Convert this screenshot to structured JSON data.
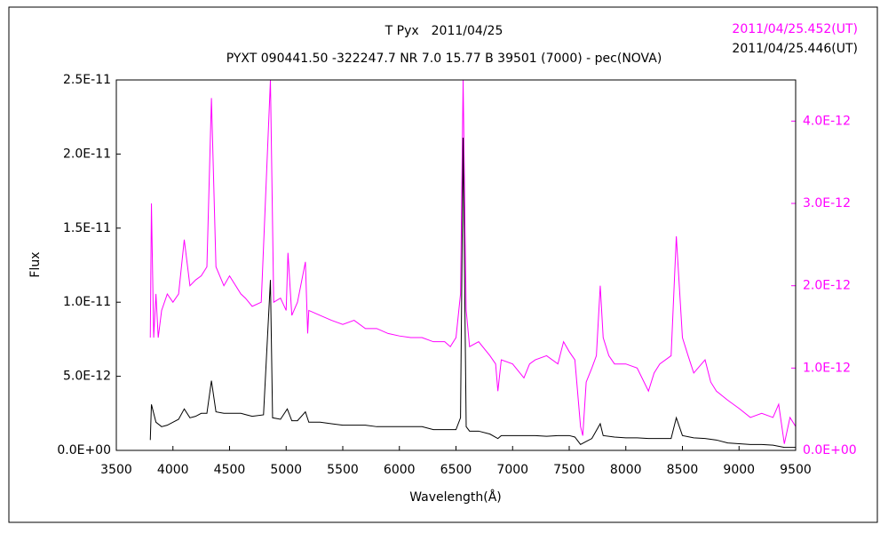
{
  "chart_data": {
    "type": "line",
    "title": "T Pyx　2011/04/25",
    "subtitle": "PYXT 090441.50 -322247.7 NR 7.0 15.77 B 39501 (7000) - pec(NOVA)",
    "xlabel": "Wavelength(Å)",
    "ylabel": "Flux",
    "xlim": [
      3500,
      9500
    ],
    "xticks": [
      3500,
      4000,
      4500,
      5000,
      5500,
      6000,
      6500,
      7000,
      7500,
      8000,
      8500,
      9000,
      9500
    ],
    "ylim": [
      0,
      2.5e-11
    ],
    "yticks": [
      {
        "value": 0,
        "label": "0.0E+00"
      },
      {
        "value": 5e-12,
        "label": "5.0E-12"
      },
      {
        "value": 1e-11,
        "label": "1.0E-11"
      },
      {
        "value": 1.5e-11,
        "label": "1.5E-11"
      },
      {
        "value": 2e-11,
        "label": "2.0E-11"
      },
      {
        "value": 2.5e-11,
        "label": "2.5E-11"
      }
    ],
    "y2lim": [
      0,
      4.5e-12
    ],
    "y2ticks": [
      {
        "value": 0,
        "label": "0.0E+00"
      },
      {
        "value": 1e-12,
        "label": "1.0E-12"
      },
      {
        "value": 2e-12,
        "label": "2.0E-12"
      },
      {
        "value": 3e-12,
        "label": "3.0E-12"
      },
      {
        "value": 4e-12,
        "label": "4.0E-12"
      }
    ],
    "series": [
      {
        "name": "2011/04/25.452(UT)",
        "color": "#ff00ff",
        "axis": "y2",
        "x": [
          3800,
          3810,
          3830,
          3850,
          3870,
          3900,
          3950,
          4000,
          4050,
          4100,
          4150,
          4200,
          4250,
          4300,
          4340,
          4380,
          4450,
          4500,
          4600,
          4640,
          4700,
          4780,
          4861,
          4890,
          4950,
          5000,
          5016,
          5050,
          5100,
          5170,
          5190,
          5200,
          5300,
          5400,
          5500,
          5600,
          5700,
          5800,
          5900,
          6000,
          6100,
          6200,
          6300,
          6400,
          6450,
          6500,
          6540,
          6563,
          6590,
          6620,
          6700,
          6800,
          6850,
          6870,
          6900,
          7000,
          7100,
          7150,
          7200,
          7300,
          7400,
          7450,
          7500,
          7550,
          7600,
          7620,
          7650,
          7700,
          7740,
          7774,
          7800,
          7850,
          7900,
          8000,
          8100,
          8200,
          8250,
          8300,
          8400,
          8446,
          8500,
          8550,
          8600,
          8700,
          8750,
          8800,
          8900,
          9000,
          9100,
          9200,
          9300,
          9350,
          9400,
          9450,
          9500
        ],
        "values": [
          1.37e-12,
          3e-12,
          1.37e-12,
          1.9e-12,
          1.37e-12,
          1.7e-12,
          1.9e-12,
          1.8e-12,
          1.9e-12,
          2.56e-12,
          2e-12,
          2.07e-12,
          2.12e-12,
          2.23e-12,
          4.28e-12,
          2.23e-12,
          2e-12,
          2.12e-12,
          1.9e-12,
          1.85e-12,
          1.75e-12,
          1.8e-12,
          4.5e-12,
          1.8e-12,
          1.85e-12,
          1.7e-12,
          2.4e-12,
          1.64e-12,
          1.8e-12,
          2.29e-12,
          1.42e-12,
          1.7e-12,
          1.64e-12,
          1.58e-12,
          1.53e-12,
          1.58e-12,
          1.48e-12,
          1.48e-12,
          1.42e-12,
          1.39e-12,
          1.37e-12,
          1.37e-12,
          1.32e-12,
          1.32e-12,
          1.26e-12,
          1.37e-12,
          1.9e-12,
          4.5e-12,
          1.7e-12,
          1.26e-12,
          1.32e-12,
          1.15e-12,
          1.05e-12,
          7.2e-13,
          1.1e-12,
          1.05e-12,
          8.8e-13,
          1.05e-12,
          1.1e-12,
          1.15e-12,
          1.05e-12,
          1.32e-12,
          1.2e-12,
          1.1e-12,
          2.9e-13,
          1.8e-13,
          8.3e-13,
          1e-12,
          1.15e-12,
          2e-12,
          1.37e-12,
          1.15e-12,
          1.05e-12,
          1.05e-12,
          1e-12,
          7.2e-13,
          9.4e-13,
          1.05e-12,
          1.15e-12,
          2.6e-12,
          1.37e-12,
          1.15e-12,
          9.4e-13,
          1.1e-12,
          8.3e-13,
          7.2e-13,
          6.1e-13,
          5.1e-13,
          4e-13,
          4.5e-13,
          4e-13,
          5.6e-13,
          8e-14,
          4e-13,
          2.9e-13
        ]
      },
      {
        "name": "2011/04/25.446(UT)",
        "color": "#000000",
        "x": [
          3800,
          3810,
          3850,
          3900,
          3950,
          4000,
          4050,
          4100,
          4150,
          4200,
          4250,
          4300,
          4340,
          4380,
          4450,
          4500,
          4600,
          4650,
          4700,
          4800,
          4861,
          4880,
          4950,
          5010,
          5050,
          5100,
          5170,
          5200,
          5300,
          5400,
          5500,
          5600,
          5700,
          5800,
          5900,
          6000,
          6100,
          6200,
          6300,
          6400,
          6500,
          6540,
          6563,
          6590,
          6620,
          6700,
          6800,
          6870,
          6900,
          7000,
          7100,
          7200,
          7300,
          7400,
          7500,
          7550,
          7600,
          7650,
          7700,
          7774,
          7800,
          7900,
          8000,
          8100,
          8200,
          8300,
          8400,
          8446,
          8500,
          8600,
          8700,
          8800,
          8900,
          9000,
          9100,
          9200,
          9300,
          9400,
          9500
        ],
        "values": [
          7e-13,
          3.1e-12,
          1.9e-12,
          1.6e-12,
          1.7e-12,
          1.9e-12,
          2.1e-12,
          2.8e-12,
          2.2e-12,
          2.3e-12,
          2.5e-12,
          2.5e-12,
          4.7e-12,
          2.6e-12,
          2.5e-12,
          2.5e-12,
          2.5e-12,
          2.4e-12,
          2.3e-12,
          2.4e-12,
          1.15e-11,
          2.2e-12,
          2.1e-12,
          2.8e-12,
          2e-12,
          2e-12,
          2.6e-12,
          1.9e-12,
          1.9e-12,
          1.8e-12,
          1.7e-12,
          1.7e-12,
          1.7e-12,
          1.6e-12,
          1.6e-12,
          1.6e-12,
          1.6e-12,
          1.6e-12,
          1.4e-12,
          1.4e-12,
          1.4e-12,
          2.2e-12,
          2.11e-11,
          1.6e-12,
          1.3e-12,
          1.3e-12,
          1.1e-12,
          8e-13,
          1e-12,
          1e-12,
          1e-12,
          1e-12,
          9.5e-13,
          1e-12,
          1e-12,
          9e-13,
          4e-13,
          6e-13,
          8e-13,
          1.8e-12,
          1e-12,
          9e-13,
          8.5e-13,
          8.5e-13,
          8e-13,
          8e-13,
          8e-13,
          2.2e-12,
          1e-12,
          8.5e-13,
          8e-13,
          7e-13,
          5e-13,
          4.5e-13,
          4e-13,
          4e-13,
          3.5e-13,
          2e-13,
          2e-13
        ]
      }
    ]
  }
}
